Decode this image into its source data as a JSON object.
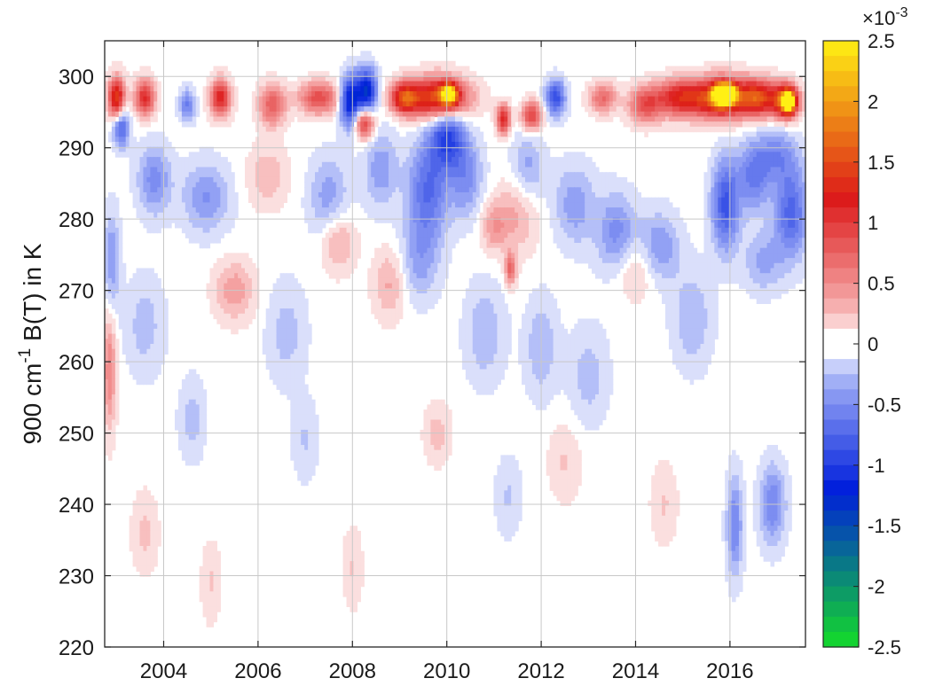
{
  "chart_data": {
    "type": "heatmap",
    "title": "",
    "xlabel": "",
    "ylabel_main": "900 cm",
    "ylabel_exp": "-1",
    "ylabel_rest": " B(T) in K",
    "xlim": [
      2002.75,
      2017.6
    ],
    "ylim": [
      220,
      305
    ],
    "grid": true,
    "x_ticks": [
      2004,
      2006,
      2008,
      2010,
      2012,
      2014,
      2016
    ],
    "y_ticks": [
      220,
      230,
      240,
      250,
      260,
      270,
      280,
      290,
      300
    ],
    "x_tick_labels": [
      "2004",
      "2006",
      "2008",
      "2010",
      "2012",
      "2014",
      "2016"
    ],
    "y_tick_labels": [
      "220",
      "230",
      "240",
      "250",
      "260",
      "270",
      "280",
      "290",
      "300"
    ],
    "colorbar": {
      "range": [
        -2.5,
        2.5
      ],
      "multiplier_base": "×10",
      "multiplier_exp": "-3",
      "ticks": [
        2.5,
        2,
        1.5,
        1,
        0.5,
        0,
        -0.5,
        -1,
        -1.5,
        -2,
        -2.5
      ],
      "tick_labels": [
        "2.5",
        "2",
        "1.5",
        "1",
        "0.5",
        "0",
        "-0.5",
        "-1",
        "-1.5",
        "-2",
        "-2.5"
      ],
      "colormap": "green-blue-white-red-yellow"
    },
    "blobs": [
      {
        "x": 2003.0,
        "y": 297,
        "sx": 0.12,
        "sy": 2.0,
        "v": 1.5
      },
      {
        "x": 2003.6,
        "y": 297,
        "sx": 0.15,
        "sy": 1.8,
        "v": 1.1
      },
      {
        "x": 2005.2,
        "y": 297,
        "sx": 0.15,
        "sy": 1.8,
        "v": 1.2
      },
      {
        "x": 2006.3,
        "y": 296,
        "sx": 0.2,
        "sy": 2.0,
        "v": 0.8
      },
      {
        "x": 2007.3,
        "y": 297,
        "sx": 0.3,
        "sy": 1.6,
        "v": 0.9
      },
      {
        "x": 2007.95,
        "y": 296.5,
        "sx": 0.15,
        "sy": 2.5,
        "v": -1.3
      },
      {
        "x": 2008.3,
        "y": 298,
        "sx": 0.15,
        "sy": 2.2,
        "v": -1.3
      },
      {
        "x": 2008.25,
        "y": 293.5,
        "sx": 0.15,
        "sy": 1.5,
        "v": 1.1
      },
      {
        "x": 2009.1,
        "y": 297,
        "sx": 0.2,
        "sy": 1.5,
        "v": 1.3
      },
      {
        "x": 2009.8,
        "y": 297,
        "sx": 0.45,
        "sy": 2.0,
        "v": 1.6
      },
      {
        "x": 2010.05,
        "y": 297.5,
        "sx": 0.12,
        "sy": 1.0,
        "v": 2.1
      },
      {
        "x": 2010.0,
        "y": 291.5,
        "sx": 0.25,
        "sy": 3.0,
        "v": -0.9
      },
      {
        "x": 2011.2,
        "y": 294,
        "sx": 0.1,
        "sy": 1.4,
        "v": 1.2
      },
      {
        "x": 2011.8,
        "y": 294.5,
        "sx": 0.15,
        "sy": 1.4,
        "v": 1.0
      },
      {
        "x": 2012.3,
        "y": 297,
        "sx": 0.15,
        "sy": 1.8,
        "v": -0.9
      },
      {
        "x": 2013.3,
        "y": 297,
        "sx": 0.2,
        "sy": 1.5,
        "v": 0.7
      },
      {
        "x": 2014.2,
        "y": 296,
        "sx": 0.25,
        "sy": 1.8,
        "v": 0.8
      },
      {
        "x": 2015.0,
        "y": 297,
        "sx": 0.4,
        "sy": 1.8,
        "v": 1.3
      },
      {
        "x": 2015.85,
        "y": 297,
        "sx": 0.35,
        "sy": 2.0,
        "v": 1.6
      },
      {
        "x": 2015.8,
        "y": 297.5,
        "sx": 0.12,
        "sy": 1.0,
        "v": 2.2
      },
      {
        "x": 2016.0,
        "y": 297.6,
        "sx": 0.1,
        "sy": 0.9,
        "v": 2.1
      },
      {
        "x": 2016.6,
        "y": 297,
        "sx": 0.3,
        "sy": 1.8,
        "v": 1.5
      },
      {
        "x": 2017.2,
        "y": 296.5,
        "sx": 0.18,
        "sy": 1.6,
        "v": 1.9
      },
      {
        "x": 2017.25,
        "y": 296.5,
        "sx": 0.08,
        "sy": 0.9,
        "v": 2.3
      },
      {
        "x": 2003.1,
        "y": 293,
        "sx": 0.12,
        "sy": 2.0,
        "v": -0.8
      },
      {
        "x": 2003.8,
        "y": 285.5,
        "sx": 0.25,
        "sy": 3.5,
        "v": -0.5
      },
      {
        "x": 2004.9,
        "y": 283,
        "sx": 0.35,
        "sy": 3.5,
        "v": -0.45
      },
      {
        "x": 2004.5,
        "y": 296,
        "sx": 0.12,
        "sy": 1.5,
        "v": -0.6
      },
      {
        "x": 2006.2,
        "y": 286,
        "sx": 0.3,
        "sy": 3.0,
        "v": 0.3
      },
      {
        "x": 2007.5,
        "y": 283,
        "sx": 0.3,
        "sy": 4.0,
        "v": -0.4
      },
      {
        "x": 2008.6,
        "y": 287,
        "sx": 0.25,
        "sy": 4.0,
        "v": -0.4
      },
      {
        "x": 2009.6,
        "y": 284,
        "sx": 0.3,
        "sy": 5.0,
        "v": -0.7
      },
      {
        "x": 2010.4,
        "y": 286,
        "sx": 0.25,
        "sy": 4.0,
        "v": -0.5
      },
      {
        "x": 2011.5,
        "y": 281,
        "sx": 0.3,
        "sy": 4.0,
        "v": 0.35
      },
      {
        "x": 2011.7,
        "y": 287,
        "sx": 0.25,
        "sy": 3.5,
        "v": -0.4
      },
      {
        "x": 2012.7,
        "y": 282,
        "sx": 0.3,
        "sy": 4.0,
        "v": -0.4
      },
      {
        "x": 2013.6,
        "y": 278,
        "sx": 0.3,
        "sy": 4.0,
        "v": -0.5
      },
      {
        "x": 2014.5,
        "y": 276,
        "sx": 0.3,
        "sy": 3.5,
        "v": -0.45
      },
      {
        "x": 2015.9,
        "y": 282,
        "sx": 0.2,
        "sy": 4.5,
        "v": -0.85
      },
      {
        "x": 2016.5,
        "y": 286,
        "sx": 0.25,
        "sy": 3.5,
        "v": -0.6
      },
      {
        "x": 2017.3,
        "y": 281,
        "sx": 0.25,
        "sy": 4.5,
        "v": -0.75
      },
      {
        "x": 2017.0,
        "y": 289,
        "sx": 0.3,
        "sy": 2.5,
        "v": -0.45
      },
      {
        "x": 2002.9,
        "y": 274,
        "sx": 0.12,
        "sy": 5.0,
        "v": -0.45
      },
      {
        "x": 2002.85,
        "y": 259,
        "sx": 0.1,
        "sy": 6.0,
        "v": 0.55
      },
      {
        "x": 2005.5,
        "y": 270,
        "sx": 0.3,
        "sy": 3.0,
        "v": 0.4
      },
      {
        "x": 2007.7,
        "y": 277,
        "sx": 0.25,
        "sy": 3.0,
        "v": 0.4
      },
      {
        "x": 2008.8,
        "y": 271,
        "sx": 0.25,
        "sy": 3.5,
        "v": 0.35
      },
      {
        "x": 2009.4,
        "y": 274,
        "sx": 0.3,
        "sy": 4.0,
        "v": -0.35
      },
      {
        "x": 2011.0,
        "y": 279,
        "sx": 0.2,
        "sy": 2.5,
        "v": 0.4
      },
      {
        "x": 2011.35,
        "y": 273,
        "sx": 0.08,
        "sy": 1.5,
        "v": 0.8
      },
      {
        "x": 2014.0,
        "y": 273,
        "sx": 0.3,
        "sy": 3.0,
        "v": 0.3
      },
      {
        "x": 2016.7,
        "y": 274,
        "sx": 0.3,
        "sy": 3.0,
        "v": -0.35
      },
      {
        "x": 2003.6,
        "y": 265,
        "sx": 0.3,
        "sy": 5.0,
        "v": -0.25
      },
      {
        "x": 2006.6,
        "y": 264,
        "sx": 0.3,
        "sy": 5.0,
        "v": -0.25
      },
      {
        "x": 2010.8,
        "y": 264,
        "sx": 0.3,
        "sy": 5.0,
        "v": -0.3
      },
      {
        "x": 2012.0,
        "y": 262,
        "sx": 0.25,
        "sy": 5.0,
        "v": -0.3
      },
      {
        "x": 2015.2,
        "y": 266,
        "sx": 0.3,
        "sy": 5.0,
        "v": -0.3
      },
      {
        "x": 2013.0,
        "y": 258,
        "sx": 0.3,
        "sy": 5.0,
        "v": -0.25
      },
      {
        "x": 2004.6,
        "y": 252,
        "sx": 0.2,
        "sy": 4.0,
        "v": -0.25
      },
      {
        "x": 2007.0,
        "y": 249,
        "sx": 0.2,
        "sy": 4.0,
        "v": -0.2
      },
      {
        "x": 2009.8,
        "y": 250,
        "sx": 0.2,
        "sy": 3.0,
        "v": 0.25
      },
      {
        "x": 2012.5,
        "y": 246,
        "sx": 0.25,
        "sy": 4.0,
        "v": 0.2
      },
      {
        "x": 2016.1,
        "y": 237,
        "sx": 0.12,
        "sy": 5.0,
        "v": -0.55
      },
      {
        "x": 2016.9,
        "y": 240,
        "sx": 0.2,
        "sy": 4.0,
        "v": -0.55
      },
      {
        "x": 2003.6,
        "y": 236,
        "sx": 0.2,
        "sy": 4.0,
        "v": 0.22
      },
      {
        "x": 2005.0,
        "y": 229,
        "sx": 0.15,
        "sy": 4.0,
        "v": 0.2
      },
      {
        "x": 2008.0,
        "y": 231,
        "sx": 0.15,
        "sy": 4.0,
        "v": 0.2
      },
      {
        "x": 2011.3,
        "y": 241,
        "sx": 0.2,
        "sy": 4.0,
        "v": -0.2
      },
      {
        "x": 2014.6,
        "y": 240,
        "sx": 0.2,
        "sy": 4.0,
        "v": 0.2
      }
    ]
  }
}
